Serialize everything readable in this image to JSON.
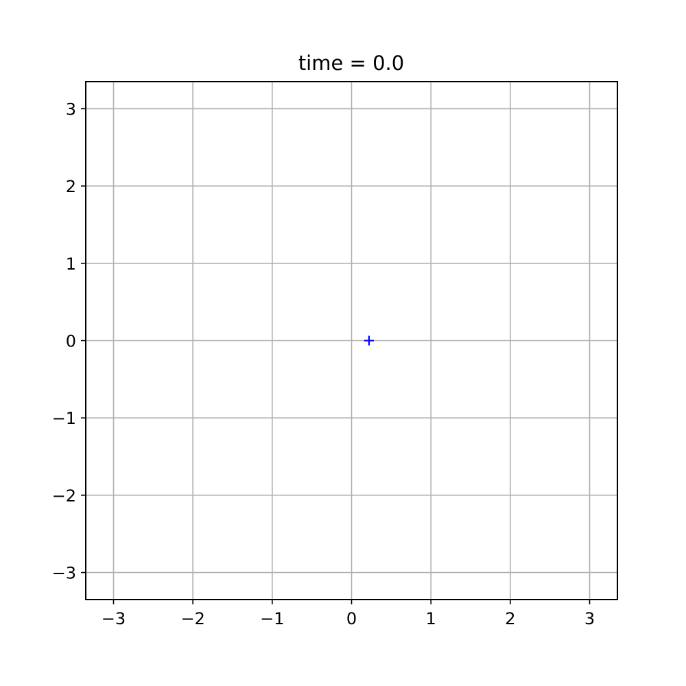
{
  "chart_data": {
    "type": "scatter",
    "title": "time = 0.0",
    "xlabel": "",
    "ylabel": "",
    "xlim": [
      -3.35,
      3.35
    ],
    "ylim": [
      -3.35,
      3.35
    ],
    "grid": true,
    "x_ticks": [
      {
        "value": -3,
        "label": "−3"
      },
      {
        "value": -2,
        "label": "−2"
      },
      {
        "value": -1,
        "label": "−1"
      },
      {
        "value": 0,
        "label": "0"
      },
      {
        "value": 1,
        "label": "1"
      },
      {
        "value": 2,
        "label": "2"
      },
      {
        "value": 3,
        "label": "3"
      }
    ],
    "y_ticks": [
      {
        "value": -3,
        "label": "−3"
      },
      {
        "value": -2,
        "label": "−2"
      },
      {
        "value": -1,
        "label": "−1"
      },
      {
        "value": 0,
        "label": "0"
      },
      {
        "value": 1,
        "label": "1"
      },
      {
        "value": 2,
        "label": "2"
      },
      {
        "value": 3,
        "label": "3"
      }
    ],
    "series": [
      {
        "marker": "+",
        "color": "#0000ff",
        "points": [
          {
            "x": 0.22,
            "y": 0.0
          }
        ]
      }
    ]
  }
}
